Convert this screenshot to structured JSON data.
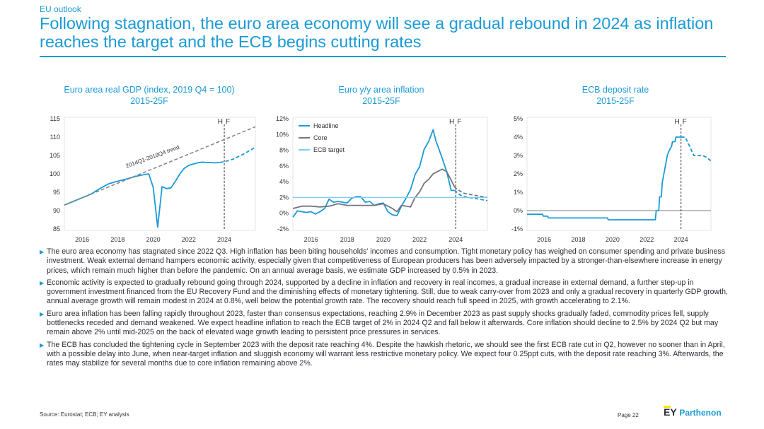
{
  "header": {
    "section": "EU outlook",
    "title": "Following stagnation, the euro area economy will see a gradual rebound in 2024 as inflation reaches the target and the ECB begins cutting rates"
  },
  "chart_data": [
    {
      "type": "line",
      "title": "Euro area real GDP (index, 2019 Q4 = 100)",
      "subtitle": "2015-25F",
      "ylim": [
        85,
        115
      ],
      "yticks": [
        85,
        90,
        95,
        100,
        105,
        110,
        115
      ],
      "xlim": [
        2015,
        2025.75
      ],
      "xticks": [
        2016,
        2018,
        2020,
        2022,
        2024
      ],
      "forecast_marker": {
        "x": 2024,
        "labels": [
          "H",
          "F"
        ]
      },
      "annotation": "2014Q1-2019Q4 trend",
      "series": [
        {
          "style": "actual",
          "color": "#1a9ad6",
          "x": [
            2015,
            2015.5,
            2016,
            2016.5,
            2017,
            2017.5,
            2018,
            2018.5,
            2019,
            2019.5,
            2019.75,
            2020,
            2020.25,
            2020.5,
            2020.75,
            2021,
            2021.25,
            2021.5,
            2021.75,
            2022,
            2022.5,
            2022.75,
            2023,
            2023.5,
            2023.75
          ],
          "y": [
            91.5,
            92.5,
            93.5,
            94.5,
            96,
            97.3,
            98,
            98.6,
            99.3,
            99.8,
            100,
            96.3,
            85.5,
            96.5,
            96,
            96.2,
            98,
            100,
            101.5,
            102.3,
            103,
            103.2,
            103.1,
            103,
            103.1
          ]
        },
        {
          "style": "forecast",
          "color": "#1a9ad6",
          "x": [
            2023.75,
            2024,
            2024.5,
            2025,
            2025.5,
            2025.75
          ],
          "y": [
            103.1,
            103.3,
            104,
            105.2,
            106.5,
            107.3
          ]
        },
        {
          "style": "trend",
          "color": "#808080",
          "x": [
            2015,
            2025.75
          ],
          "y": [
            91.5,
            112.8
          ]
        }
      ]
    },
    {
      "type": "line",
      "title": "Euro y/y area inflation",
      "subtitle": "2015-25F",
      "ylim": [
        -2,
        12
      ],
      "yticks": [
        "-2%",
        "0%",
        "2%",
        "4%",
        "6%",
        "8%",
        "10%",
        "12%"
      ],
      "xlim": [
        2015,
        2025.75
      ],
      "xticks": [
        2016,
        2018,
        2020,
        2022,
        2024
      ],
      "forecast_marker": {
        "x": 2024,
        "labels": [
          "H",
          "F"
        ]
      },
      "legend": [
        "Headline",
        "Core",
        "ECB target"
      ],
      "series": [
        {
          "name": "Headline",
          "style": "actual",
          "color": "#1a9ad6",
          "x": [
            2015,
            2015.25,
            2015.5,
            2015.75,
            2016,
            2016.25,
            2016.5,
            2016.75,
            2017,
            2017.25,
            2017.5,
            2017.75,
            2018,
            2018.25,
            2018.5,
            2018.75,
            2019,
            2019.25,
            2019.5,
            2019.75,
            2020,
            2020.25,
            2020.5,
            2020.75,
            2021,
            2021.25,
            2021.5,
            2021.75,
            2022,
            2022.25,
            2022.5,
            2022.75,
            2022.9,
            2023,
            2023.25,
            2023.5,
            2023.75,
            2023.92
          ],
          "y": [
            -0.5,
            0.3,
            0.2,
            0.1,
            0.2,
            -0.1,
            0.2,
            0.6,
            1.8,
            1.4,
            1.5,
            1.4,
            1.3,
            1.9,
            2.1,
            2.1,
            1.4,
            1.5,
            1.0,
            1.2,
            1.3,
            0.2,
            -0.2,
            -0.3,
            0.9,
            1.9,
            3.0,
            4.9,
            5.9,
            8.1,
            9.1,
            10.6,
            9.2,
            8.6,
            7.0,
            5.3,
            2.9,
            2.9
          ]
        },
        {
          "name": "Headline",
          "style": "forecast",
          "color": "#1a9ad6",
          "x": [
            2023.92,
            2024,
            2024.25,
            2024.5,
            2025,
            2025.5,
            2025.75
          ],
          "y": [
            2.9,
            2.8,
            2.3,
            2.1,
            1.9,
            1.7,
            1.6
          ]
        },
        {
          "name": "Core",
          "style": "actual",
          "color": "#747480",
          "x": [
            2015,
            2015.5,
            2016,
            2016.5,
            2017,
            2017.5,
            2018,
            2018.5,
            2019,
            2019.5,
            2020,
            2020.5,
            2020.75,
            2021,
            2021.5,
            2021.75,
            2022,
            2022.25,
            2022.5,
            2022.75,
            2023,
            2023.25,
            2023.5,
            2023.75,
            2023.92
          ],
          "y": [
            0.6,
            0.9,
            0.9,
            0.8,
            0.9,
            1.2,
            1.0,
            1.0,
            1.0,
            1.0,
            1.2,
            0.6,
            0.2,
            1.0,
            0.8,
            2.0,
            2.7,
            3.8,
            4.3,
            5.0,
            5.3,
            5.6,
            5.3,
            4.2,
            3.4
          ]
        },
        {
          "name": "Core",
          "style": "forecast",
          "color": "#747480",
          "x": [
            2023.92,
            2024,
            2024.25,
            2024.5,
            2025,
            2025.5,
            2025.75
          ],
          "y": [
            3.4,
            3.2,
            2.8,
            2.5,
            2.3,
            2.1,
            2.0
          ]
        },
        {
          "name": "ECB target",
          "style": "target",
          "color": "#7fcaf0",
          "x": [
            2015,
            2025.75
          ],
          "y": [
            2,
            2
          ]
        }
      ]
    },
    {
      "type": "line",
      "title": "ECB deposit rate",
      "subtitle": "2015-25F",
      "ylim": [
        -1,
        5
      ],
      "yticks": [
        "-1%",
        "0%",
        "1%",
        "2%",
        "3%",
        "4%",
        "5%"
      ],
      "xlim": [
        2015,
        2025.75
      ],
      "xticks": [
        2016,
        2018,
        2020,
        2022,
        2024
      ],
      "forecast_marker": {
        "x": 2024,
        "labels": [
          "H",
          "F"
        ]
      },
      "series": [
        {
          "style": "actual",
          "color": "#1a9ad6",
          "x": [
            2015,
            2015.9,
            2015.95,
            2016.2,
            2016.25,
            2019.7,
            2019.75,
            2022.5,
            2022.55,
            2022.7,
            2022.75,
            2022.85,
            2022.9,
            2023,
            2023.1,
            2023.2,
            2023.3,
            2023.45,
            2023.5,
            2023.65,
            2023.7,
            2023.9,
            2024
          ],
          "y": [
            -0.2,
            -0.2,
            -0.3,
            -0.3,
            -0.4,
            -0.4,
            -0.5,
            -0.5,
            0,
            0,
            0.75,
            0.75,
            1.5,
            2.0,
            2.5,
            3.0,
            3.25,
            3.5,
            3.75,
            3.75,
            4.0,
            4.0,
            4.0
          ]
        },
        {
          "style": "forecast",
          "color": "#1a9ad6",
          "x": [
            2024,
            2024.25,
            2024.5,
            2024.75,
            2025,
            2025.25,
            2025.5,
            2025.75
          ],
          "y": [
            4.0,
            4.0,
            3.5,
            3.0,
            3.0,
            3.0,
            2.9,
            2.7
          ]
        }
      ]
    }
  ],
  "bullets": [
    "The euro area economy has stagnated since 2022 Q3. High inflation has been biting households' incomes and consumption. Tight monetary policy has weighed on consumer spending and private business investment. Weak external demand hampers economic activity, especially given that competitiveness of European producers has been adversely impacted by a stronger-than-elsewhere increase in energy prices, which remain much higher than before the pandemic. On an annual average basis, we estimate GDP increased by 0.5% in 2023.",
    "Economic activity is expected to gradually rebound going through 2024, supported by a decline in inflation and recovery in real incomes, a gradual increase in external demand, a further step-up in government investment financed from the EU Recovery Fund and the diminishing effects of monetary tightening. Still, due to weak carry-over from 2023 and only a gradual recovery in quarterly GDP growth, annual average growth will remain modest in 2024 at 0.8%, well below the potential growth rate. The recovery should reach full speed in 2025, with growth accelerating to 2.1%.",
    "Euro area inflation has been falling rapidly throughout 2023, faster than consensus expectations, reaching 2.9% in December 2023 as past supply shocks gradually faded, commodity prices fell, supply bottlenecks receded and demand weakened. We expect headline inflation to reach the ECB target of 2% in 2024 Q2 and fall below it afterwards. Core inflation should decline to 2.5% by 2024 Q2 but may remain above 2% until mid-2025 on the back of elevated wage growth leading to persistent price pressures in services.",
    "The ECB has concluded the tightening cycle in September 2023 with the deposit rate reaching 4%. Despite the hawkish rhetoric, we should see the first ECB rate cut in Q2, however no sooner than in April, with a possible delay into June, when near-target inflation and sluggish economy will warrant less restrictive monetary policy. We expect four 0.25ppt cuts, with the deposit rate reaching 3%. Afterwards, the rates may stabilize for several months due to core inflation remaining above 2%."
  ],
  "footer": {
    "source": "Source:  Eurostat;  ECB; EY analysis",
    "page": "Page 22",
    "logo_ey": "EY",
    "logo_parthenon": "Parthenon"
  }
}
